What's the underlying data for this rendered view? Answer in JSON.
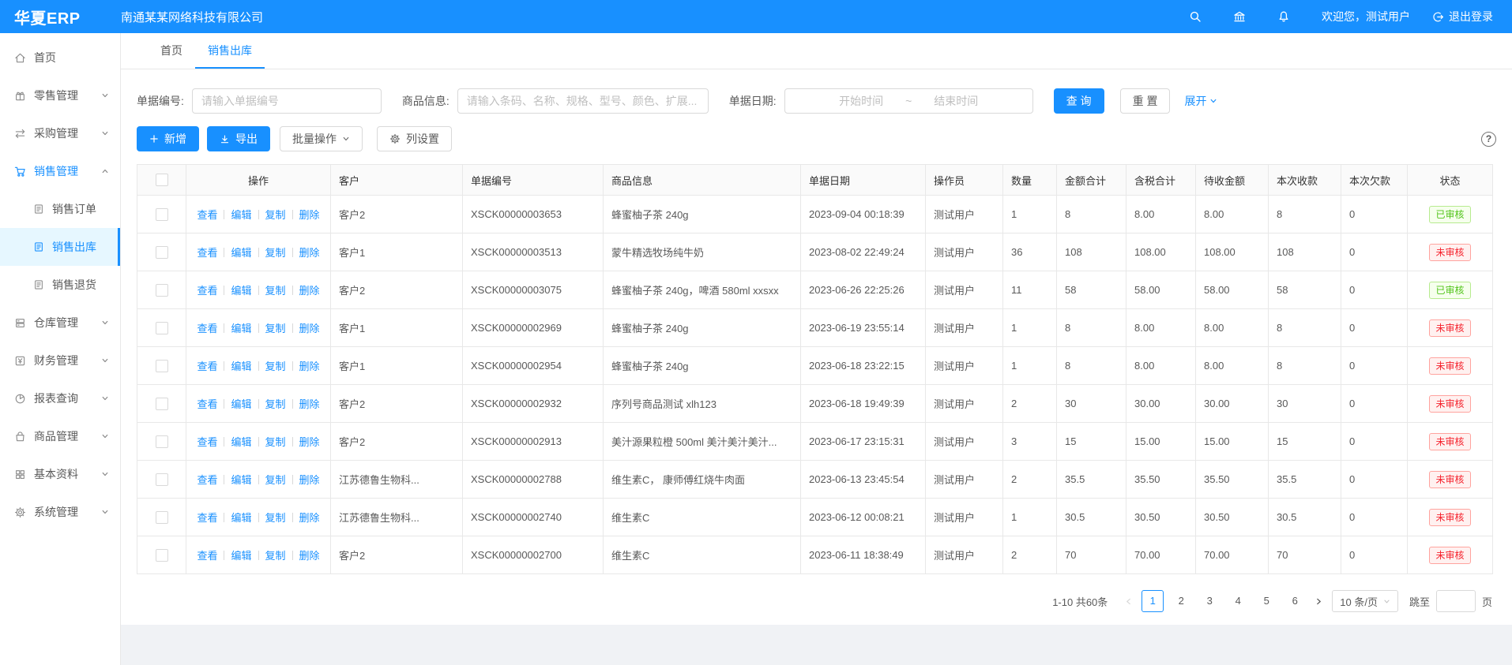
{
  "colors": {
    "primary": "#1890ff",
    "approved_green": "#52c41a",
    "pending_red": "#f5222d",
    "header_bg": "#1890ff",
    "selected_bg": "#e6f7ff"
  },
  "icons": {
    "help": "?"
  },
  "header": {
    "logo": "华夏ERP",
    "company": "南通某某网络科技有限公司",
    "welcome": "欢迎您，测试用户",
    "logout": "退出登录"
  },
  "sidebar": {
    "items": [
      {
        "label": "首页",
        "icon": "home-icon"
      },
      {
        "label": "零售管理",
        "icon": "retail-icon",
        "chevron": "chevron-down-icon"
      },
      {
        "label": "采购管理",
        "icon": "purchase-icon",
        "chevron": "chevron-down-icon"
      },
      {
        "label": "销售管理",
        "icon": "cart-icon",
        "chevron": "chevron-up-icon",
        "active": true
      },
      {
        "label": "销售订单",
        "icon": "doc-icon",
        "sub": true
      },
      {
        "label": "销售出库",
        "icon": "doc-icon",
        "sub": true,
        "selected": true
      },
      {
        "label": "销售退货",
        "icon": "doc-icon",
        "sub": true
      },
      {
        "label": "仓库管理",
        "icon": "warehouse-icon",
        "chevron": "chevron-down-icon"
      },
      {
        "label": "财务管理",
        "icon": "finance-icon",
        "chevron": "chevron-down-icon"
      },
      {
        "label": "报表查询",
        "icon": "report-icon",
        "chevron": "chevron-down-icon"
      },
      {
        "label": "商品管理",
        "icon": "goods-icon",
        "chevron": "chevron-down-icon"
      },
      {
        "label": "基本资料",
        "icon": "base-icon",
        "chevron": "chevron-down-icon"
      },
      {
        "label": "系统管理",
        "icon": "system-icon",
        "chevron": "chevron-down-icon"
      }
    ]
  },
  "tabs": [
    {
      "label": "首页"
    },
    {
      "label": "销售出库",
      "active": true
    }
  ],
  "filters": {
    "bill_no_label": "单据编号:",
    "bill_no_placeholder": "请输入单据编号",
    "product_label": "商品信息:",
    "product_placeholder": "请输入条码、名称、规格、型号、颜色、扩展...",
    "date_label": "单据日期:",
    "date_start_placeholder": "开始时间",
    "date_tilde": "~",
    "date_end_placeholder": "结束时间",
    "search_button": "查 询",
    "reset_button": "重 置",
    "expand_link": "展开"
  },
  "toolbar": {
    "add": "新增",
    "export": "导出",
    "batch": "批量操作",
    "columns": "列设置"
  },
  "table": {
    "headers": [
      "操作",
      "客户",
      "单据编号",
      "商品信息",
      "单据日期",
      "操作员",
      "数量",
      "金额合计",
      "含税合计",
      "待收金额",
      "本次收款",
      "本次欠款",
      "状态"
    ],
    "action_links": [
      "查看",
      "编辑",
      "复制",
      "删除"
    ],
    "rows": [
      {
        "customer": "客户2",
        "bill_no": "XSCK00000003653",
        "product": "蜂蜜柚子茶 240g",
        "date": "2023-09-04 00:18:39",
        "operator": "测试用户",
        "qty": "1",
        "amount": "8",
        "tax": "8.00",
        "receivable": "8.00",
        "received": "8",
        "debt": "0",
        "status": "已审核",
        "status_type": "approved"
      },
      {
        "customer": "客户1",
        "bill_no": "XSCK00000003513",
        "product": "蒙牛精选牧场纯牛奶",
        "date": "2023-08-02 22:49:24",
        "operator": "测试用户",
        "qty": "36",
        "amount": "108",
        "tax": "108.00",
        "receivable": "108.00",
        "received": "108",
        "debt": "0",
        "status": "未审核",
        "status_type": "pending"
      },
      {
        "customer": "客户2",
        "bill_no": "XSCK00000003075",
        "product": "蜂蜜柚子茶 240g，啤酒 580ml xxsxx",
        "date": "2023-06-26 22:25:26",
        "operator": "测试用户",
        "qty": "11",
        "amount": "58",
        "tax": "58.00",
        "receivable": "58.00",
        "received": "58",
        "debt": "0",
        "status": "已审核",
        "status_type": "approved"
      },
      {
        "customer": "客户1",
        "bill_no": "XSCK00000002969",
        "product": "蜂蜜柚子茶 240g",
        "date": "2023-06-19 23:55:14",
        "operator": "测试用户",
        "qty": "1",
        "amount": "8",
        "tax": "8.00",
        "receivable": "8.00",
        "received": "8",
        "debt": "0",
        "status": "未审核",
        "status_type": "pending"
      },
      {
        "customer": "客户1",
        "bill_no": "XSCK00000002954",
        "product": "蜂蜜柚子茶 240g",
        "date": "2023-06-18 23:22:15",
        "operator": "测试用户",
        "qty": "1",
        "amount": "8",
        "tax": "8.00",
        "receivable": "8.00",
        "received": "8",
        "debt": "0",
        "status": "未审核",
        "status_type": "pending"
      },
      {
        "customer": "客户2",
        "bill_no": "XSCK00000002932",
        "product": "序列号商品测试 xlh123",
        "date": "2023-06-18 19:49:39",
        "operator": "测试用户",
        "qty": "2",
        "amount": "30",
        "tax": "30.00",
        "receivable": "30.00",
        "received": "30",
        "debt": "0",
        "status": "未审核",
        "status_type": "pending"
      },
      {
        "customer": "客户2",
        "bill_no": "XSCK00000002913",
        "product": "美汁源果粒橙 500ml 美汁美汁美汁...",
        "date": "2023-06-17 23:15:31",
        "operator": "测试用户",
        "qty": "3",
        "amount": "15",
        "tax": "15.00",
        "receivable": "15.00",
        "received": "15",
        "debt": "0",
        "status": "未审核",
        "status_type": "pending"
      },
      {
        "customer": "江苏德鲁生物科...",
        "bill_no": "XSCK00000002788",
        "product": "维生素C， 康师傅红烧牛肉面",
        "date": "2023-06-13 23:45:54",
        "operator": "测试用户",
        "qty": "2",
        "amount": "35.5",
        "tax": "35.50",
        "receivable": "35.50",
        "received": "35.5",
        "debt": "0",
        "status": "未审核",
        "status_type": "pending"
      },
      {
        "customer": "江苏德鲁生物科...",
        "bill_no": "XSCK00000002740",
        "product": "维生素C",
        "date": "2023-06-12 00:08:21",
        "operator": "测试用户",
        "qty": "1",
        "amount": "30.5",
        "tax": "30.50",
        "receivable": "30.50",
        "received": "30.5",
        "debt": "0",
        "status": "未审核",
        "status_type": "pending"
      },
      {
        "customer": "客户2",
        "bill_no": "XSCK00000002700",
        "product": "维生素C",
        "date": "2023-06-11 18:38:49",
        "operator": "测试用户",
        "qty": "2",
        "amount": "70",
        "tax": "70.00",
        "receivable": "70.00",
        "received": "70",
        "debt": "0",
        "status": "未审核",
        "status_type": "pending"
      }
    ]
  },
  "pagination": {
    "total": "1-10 共60条",
    "pages": [
      "1",
      "2",
      "3",
      "4",
      "5",
      "6"
    ],
    "current": "1",
    "page_size": "10 条/页",
    "jump_label": "跳至",
    "page_suffix": "页"
  }
}
